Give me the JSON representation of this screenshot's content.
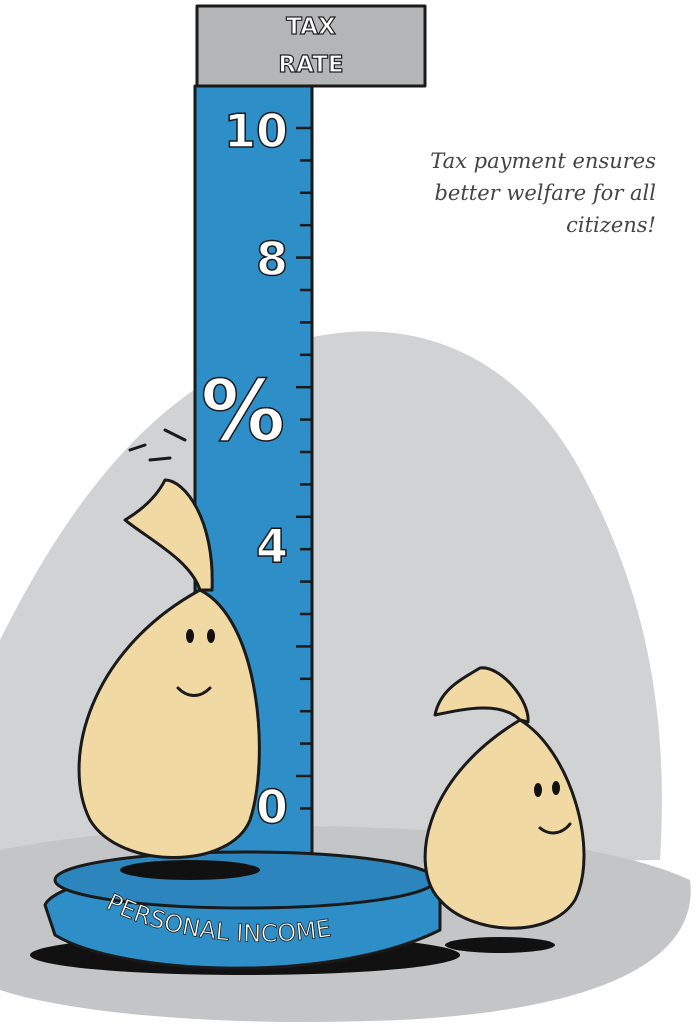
{
  "sign": {
    "lines": [
      "TAX",
      "RATE"
    ]
  },
  "scale": {
    "labels": [
      "10",
      "8",
      "%",
      "4",
      "0"
    ]
  },
  "caption": {
    "lines": [
      "Tax payment ensures",
      "better welfare for all",
      "citizens!"
    ]
  },
  "base": {
    "label": "PERSONAL INCOME"
  }
}
